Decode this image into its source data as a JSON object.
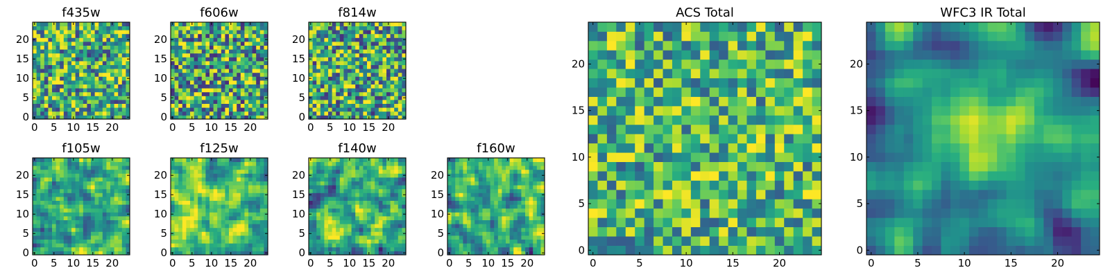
{
  "chart_data": [
    {
      "type": "heatmap",
      "title": "f435w",
      "grid": [
        25,
        25
      ],
      "clim": [
        0,
        1
      ],
      "seed": 11,
      "smooth": 0,
      "mean": 0.62,
      "spread": 0.55,
      "xticks": [
        0,
        5,
        10,
        15,
        20
      ],
      "yticks": [
        0,
        5,
        10,
        15,
        20
      ],
      "xlim": [
        -0.5,
        24.5
      ],
      "ylim": [
        -0.5,
        24.5
      ]
    },
    {
      "type": "heatmap",
      "title": "f606w",
      "grid": [
        25,
        25
      ],
      "clim": [
        0,
        1
      ],
      "seed": 23,
      "smooth": 0,
      "mean": 0.6,
      "spread": 0.6,
      "xticks": [
        0,
        5,
        10,
        15,
        20
      ],
      "yticks": [
        0,
        5,
        10,
        15,
        20
      ],
      "xlim": [
        -0.5,
        24.5
      ],
      "ylim": [
        -0.5,
        24.5
      ]
    },
    {
      "type": "heatmap",
      "title": "f814w",
      "grid": [
        25,
        25
      ],
      "clim": [
        0,
        1
      ],
      "seed": 37,
      "smooth": 0,
      "mean": 0.6,
      "spread": 0.58,
      "xticks": [
        0,
        5,
        10,
        15,
        20
      ],
      "yticks": [
        0,
        5,
        10,
        15,
        20
      ],
      "xlim": [
        -0.5,
        24.5
      ],
      "ylim": [
        -0.5,
        24.5
      ]
    },
    {
      "type": "heatmap",
      "title": "f105w",
      "grid": [
        25,
        25
      ],
      "clim": [
        0,
        1
      ],
      "seed": 41,
      "smooth": 1,
      "mean": 0.66,
      "spread": 0.6,
      "xticks": [
        0,
        5,
        10,
        15,
        20
      ],
      "yticks": [
        0,
        5,
        10,
        15,
        20
      ],
      "xlim": [
        -0.5,
        24.5
      ],
      "ylim": [
        -0.5,
        24.5
      ]
    },
    {
      "type": "heatmap",
      "title": "f125w",
      "grid": [
        25,
        25
      ],
      "clim": [
        0,
        1
      ],
      "seed": 53,
      "smooth": 1,
      "mean": 0.68,
      "spread": 0.6,
      "xticks": [
        0,
        5,
        10,
        15,
        20
      ],
      "yticks": [
        0,
        5,
        10,
        15,
        20
      ],
      "xlim": [
        -0.5,
        24.5
      ],
      "ylim": [
        -0.5,
        24.5
      ]
    },
    {
      "type": "heatmap",
      "title": "f140w",
      "grid": [
        25,
        25
      ],
      "clim": [
        0,
        1
      ],
      "seed": 67,
      "smooth": 1,
      "mean": 0.6,
      "spread": 0.65,
      "xticks": [
        0,
        5,
        10,
        15,
        20
      ],
      "yticks": [
        0,
        5,
        10,
        15,
        20
      ],
      "xlim": [
        -0.5,
        24.5
      ],
      "ylim": [
        -0.5,
        24.5
      ]
    },
    {
      "type": "heatmap",
      "title": "f160w",
      "grid": [
        25,
        25
      ],
      "clim": [
        0,
        1
      ],
      "seed": 79,
      "smooth": 1,
      "mean": 0.6,
      "spread": 0.65,
      "xticks": [
        0,
        5,
        10,
        15,
        20
      ],
      "yticks": [
        0,
        5,
        10,
        15,
        20
      ],
      "xlim": [
        -0.5,
        24.5
      ],
      "ylim": [
        -0.5,
        24.5
      ]
    },
    {
      "type": "heatmap",
      "title": "ACS Total",
      "grid": [
        25,
        25
      ],
      "clim": [
        0,
        1
      ],
      "seed": 97,
      "smooth": 0,
      "mean": 0.65,
      "spread": 0.45,
      "xticks": [
        0,
        5,
        10,
        15,
        20
      ],
      "yticks": [
        0,
        5,
        10,
        15,
        20
      ],
      "xlim": [
        -0.5,
        24.5
      ],
      "ylim": [
        -0.5,
        24.5
      ]
    },
    {
      "type": "heatmap",
      "title": "WFC3 IR Total",
      "grid": [
        25,
        25
      ],
      "clim": [
        0,
        1
      ],
      "seed": 113,
      "smooth": 2,
      "mean": 0.55,
      "spread": 0.55,
      "peak": {
        "x": 12,
        "y": 13,
        "amp": 0.35,
        "sigma": 5
      },
      "xticks": [
        0,
        5,
        10,
        15,
        20
      ],
      "yticks": [
        0,
        5,
        10,
        15,
        20
      ],
      "xlim": [
        -0.5,
        24.5
      ],
      "ylim": [
        -0.5,
        24.5
      ]
    }
  ],
  "colormap": [
    "#440154",
    "#472d7b",
    "#3b528b",
    "#2c728e",
    "#21918c",
    "#28ae80",
    "#5ec962",
    "#addc30",
    "#fde725"
  ]
}
